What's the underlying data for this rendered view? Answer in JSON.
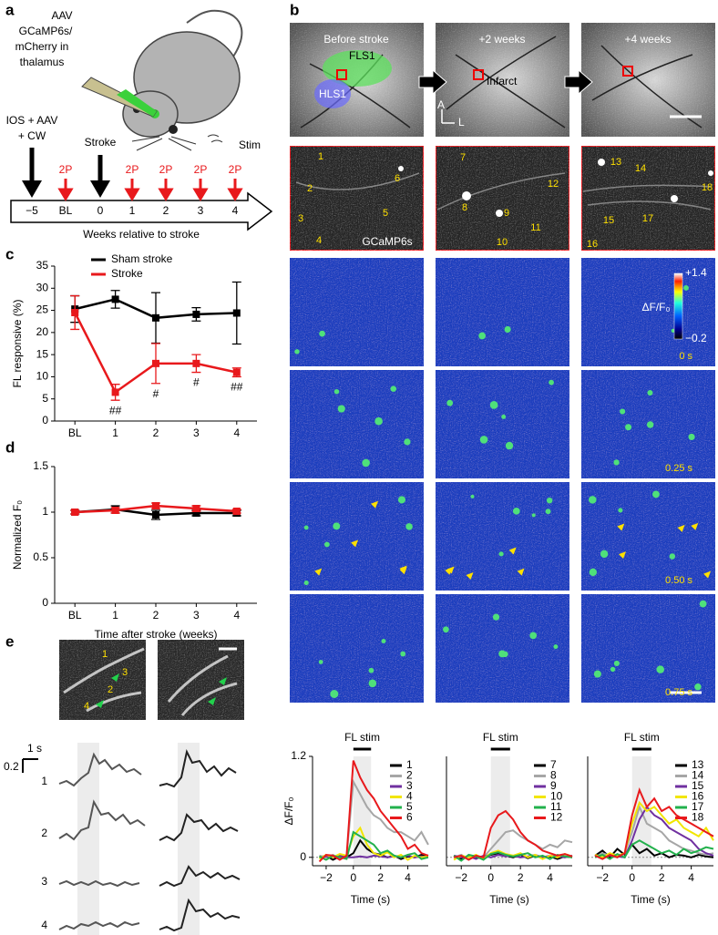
{
  "panel_labels": [
    "a",
    "b",
    "c",
    "d",
    "e"
  ],
  "panel_a": {
    "injection": [
      "AAV",
      "GCaMP6s/",
      "mCherry in",
      "thalamus"
    ],
    "stim": "Stim",
    "surgery": [
      "IOS + AAV",
      "+ CW"
    ],
    "stroke": "Stroke",
    "imaging_labels": [
      "2P",
      "2P",
      "2P",
      "2P",
      "2P"
    ],
    "timeline": [
      "−5",
      "BL",
      "0",
      "1",
      "2",
      "3",
      "4"
    ],
    "timeline_label": "Weeks relative to stroke"
  },
  "panel_b": {
    "columns": [
      "Before stroke",
      "+2 weeks",
      "+4 weeks"
    ],
    "regions": [
      "FLS1",
      "HLS1"
    ],
    "infarct": "Infarct",
    "axes": [
      "A",
      "L"
    ],
    "cells": [
      [
        "1",
        "2",
        "3",
        "4",
        "5",
        "6"
      ],
      [
        "7",
        "8",
        "9",
        "10",
        "11",
        "12"
      ],
      [
        "13",
        "14",
        "15",
        "16",
        "17",
        "18"
      ]
    ],
    "indicator": "GCaMP6s",
    "colorbar": {
      "label": "ΔF/F₀",
      "ticks": [
        {
          "value": 1.4,
          "label": "+1.4"
        },
        {
          "value": -0.2,
          "label": "−0.2"
        }
      ]
    },
    "frames": [
      "0 s",
      "0.25 s",
      "0.50 s",
      "0.75 s"
    ]
  },
  "panel_e": {
    "cells": [
      "1",
      "3",
      "2",
      "4"
    ],
    "row_labels": [
      "1",
      "2",
      "3",
      "4"
    ],
    "scale_time": "1 s",
    "scale_amplitude": "0.2"
  },
  "chart_data": [
    {
      "type": "line",
      "ylabel": "FL responsive (%)",
      "categories": [
        "BL",
        "1",
        "2",
        "3",
        "4"
      ],
      "ylim": [
        0,
        35
      ],
      "yticks": [
        0,
        5,
        10,
        15,
        20,
        25,
        30,
        35
      ],
      "legend": "top",
      "series": [
        {
          "name": "Sham stroke",
          "color": "#000000",
          "values": [
            25.3,
            27.5,
            23.3,
            24.1,
            24.4
          ],
          "errors": [
            3,
            2,
            5.7,
            1.5,
            7
          ]
        },
        {
          "name": "Stroke",
          "color": "#e8191c",
          "values": [
            24.5,
            6.5,
            13,
            13,
            11
          ],
          "errors": [
            3.8,
            1.8,
            4.5,
            2,
            1
          ],
          "significance": [
            null,
            "##",
            "#",
            "#",
            "##"
          ]
        }
      ]
    },
    {
      "type": "line",
      "ylabel": "Normalized F₀",
      "xlabel": "Time after stroke (weeks)",
      "categories": [
        "BL",
        "1",
        "2",
        "3",
        "4"
      ],
      "ylim": [
        0,
        1.5
      ],
      "yticks": [
        0,
        0.5,
        1,
        1.5
      ],
      "series": [
        {
          "name": "Sham stroke",
          "color": "#000000",
          "values": [
            1,
            1.03,
            0.97,
            0.99,
            0.99
          ],
          "errors": [
            0.02,
            0.04,
            0.05,
            0.03,
            0.03
          ]
        },
        {
          "name": "Stroke",
          "color": "#e8191c",
          "values": [
            1,
            1.02,
            1.07,
            1.04,
            1.01
          ],
          "errors": [
            0.02,
            0.03,
            0.03,
            0.03,
            0.02
          ]
        }
      ]
    },
    {
      "type": "line",
      "title": "FL stim",
      "ylabel": "ΔF/F₀",
      "xlabel": "Time (s)",
      "stim": [
        0,
        1.3
      ],
      "x": [
        -2.5,
        -2,
        -1.5,
        -1,
        -0.5,
        0,
        0.5,
        1,
        1.5,
        2,
        2.5,
        3,
        3.5,
        4,
        4.5,
        5,
        5.5
      ],
      "xlim": [
        -3,
        5.5
      ],
      "xticks": [
        {
          "value": -2,
          "label": "−2"
        },
        0,
        2,
        4
      ],
      "ylim": [
        -0.1,
        1.2
      ],
      "yticks": [
        0,
        1.2
      ],
      "legend": "right",
      "series": [
        {
          "name": "1",
          "color": "#000000",
          "values": [
            0,
            0.02,
            -0.03,
            0.01,
            0,
            0.05,
            0.2,
            0.1,
            0.05,
            0.03,
            0,
            0.02,
            -0.02,
            0.01,
            0,
            0.03,
            0.02
          ]
        },
        {
          "name": "2",
          "color": "#a6a6a6",
          "values": [
            0.02,
            0,
            0.03,
            -0.02,
            0.01,
            0.9,
            0.75,
            0.6,
            0.5,
            0.45,
            0.35,
            0.3,
            0.3,
            0.25,
            0.2,
            0.3,
            0.15
          ]
        },
        {
          "name": "3",
          "color": "#7030a0",
          "values": [
            0,
            0.01,
            0,
            0.02,
            0,
            0,
            0.01,
            0,
            0.02,
            0.01,
            0,
            0.01,
            0,
            0.02,
            0,
            0.01,
            0
          ]
        },
        {
          "name": "4",
          "color": "#f2e600",
          "values": [
            -0.02,
            0.03,
            0,
            0.04,
            0.02,
            0.25,
            0.35,
            0.15,
            0.05,
            0.02,
            0.06,
            0,
            0.03,
            -0.03,
            0.02,
            0,
            0.01
          ]
        },
        {
          "name": "5",
          "color": "#22b14c",
          "values": [
            0.01,
            -0.03,
            0.02,
            0,
            -0.02,
            0.3,
            0.25,
            0.2,
            0.15,
            0.05,
            0.08,
            0.02,
            0,
            0.03,
            0.05,
            -0.02,
            0
          ]
        },
        {
          "name": "6",
          "color": "#e8191c",
          "values": [
            -0.05,
            0.03,
            0.02,
            -0.03,
            0.02,
            1.15,
            0.95,
            0.8,
            0.7,
            0.55,
            0.45,
            0.35,
            0.25,
            0.1,
            0.15,
            0.05,
            0.02
          ]
        }
      ]
    },
    {
      "type": "line",
      "title": "FL stim",
      "xlabel": "Time (s)",
      "stim": [
        0,
        1.3
      ],
      "x": [
        -2.5,
        -2,
        -1.5,
        -1,
        -0.5,
        0,
        0.5,
        1,
        1.5,
        2,
        2.5,
        3,
        3.5,
        4,
        4.5,
        5,
        5.5
      ],
      "xlim": [
        -3,
        5.5
      ],
      "xticks": [
        {
          "value": -2,
          "label": "−2"
        },
        0,
        2,
        4
      ],
      "ylim": [
        -0.1,
        1.2
      ],
      "legend": "right",
      "series": [
        {
          "name": "7",
          "color": "#000000",
          "values": [
            0.01,
            -0.02,
            0.02,
            0,
            0.01,
            0.03,
            0.05,
            0.02,
            0,
            0.03,
            -0.01,
            0.02,
            0,
            0.01,
            -0.02,
            0.01,
            0
          ]
        },
        {
          "name": "8",
          "color": "#a6a6a6",
          "values": [
            0,
            0.03,
            -0.02,
            0.01,
            0,
            0.1,
            0.2,
            0.3,
            0.32,
            0.25,
            0.2,
            0.15,
            0.1,
            0.15,
            0.12,
            0.2,
            0.18
          ]
        },
        {
          "name": "9",
          "color": "#7030a0",
          "values": [
            0.02,
            0,
            0.01,
            -0.02,
            0.02,
            0,
            0.03,
            0.01,
            0.02,
            0,
            0.01,
            0.03,
            0,
            0.02,
            0.01,
            0,
            0.02
          ]
        },
        {
          "name": "10",
          "color": "#f2e600",
          "values": [
            -0.03,
            0.02,
            0,
            0.03,
            -0.02,
            0.05,
            0.08,
            0.04,
            0.02,
            0.05,
            0,
            0.03,
            -0.02,
            0.02,
            0,
            0.04,
            0.01
          ]
        },
        {
          "name": "11",
          "color": "#22b14c",
          "values": [
            0.02,
            -0.04,
            0.03,
            0.01,
            -0.03,
            0.04,
            0.06,
            0.03,
            0.01,
            0.03,
            0.05,
            0,
            0.02,
            -0.02,
            0.03,
            0.01,
            0
          ]
        },
        {
          "name": "12",
          "color": "#e8191c",
          "values": [
            0,
            0.02,
            -0.03,
            0.02,
            0,
            0.35,
            0.5,
            0.55,
            0.45,
            0.3,
            0.2,
            0.15,
            0.08,
            0.05,
            0.02,
            0.04,
            0.01
          ]
        }
      ]
    },
    {
      "type": "line",
      "title": "FL stim",
      "xlabel": "Time (s)",
      "stim": [
        0,
        1.3
      ],
      "x": [
        -2.5,
        -2,
        -1.5,
        -1,
        -0.5,
        0,
        0.5,
        1,
        1.5,
        2,
        2.5,
        3,
        3.5,
        4,
        4.5,
        5,
        5.5
      ],
      "xlim": [
        -3,
        5.5
      ],
      "xticks": [
        {
          "value": -2,
          "label": "−2"
        },
        0,
        2,
        4
      ],
      "ylim": [
        -0.1,
        1.2
      ],
      "legend": "right",
      "series": [
        {
          "name": "13",
          "color": "#000000",
          "values": [
            0.02,
            0.08,
            0,
            0.1,
            0.03,
            0.15,
            0.05,
            0.1,
            0.02,
            0.05,
            0,
            0.03,
            0.02,
            0,
            0.03,
            0.01,
            0
          ]
        },
        {
          "name": "14",
          "color": "#a6a6a6",
          "values": [
            0,
            0.05,
            0.02,
            0,
            0.05,
            0.3,
            0.6,
            0.4,
            0.35,
            0.3,
            0.2,
            0.15,
            0.1,
            0.08,
            0.05,
            0.03,
            0.05
          ]
        },
        {
          "name": "15",
          "color": "#7030a0",
          "values": [
            0.01,
            0,
            0.02,
            0.01,
            0,
            0.2,
            0.45,
            0.6,
            0.5,
            0.45,
            0.35,
            0.3,
            0.25,
            0.2,
            0.1,
            0.05,
            0.02
          ]
        },
        {
          "name": "16",
          "color": "#f2e600",
          "values": [
            0.03,
            0,
            0.05,
            0.02,
            0.05,
            0.4,
            0.65,
            0.55,
            0.6,
            0.5,
            0.4,
            0.45,
            0.35,
            0.3,
            0.25,
            0.35,
            0.2
          ]
        },
        {
          "name": "17",
          "color": "#22b14c",
          "values": [
            0,
            0.03,
            -0.02,
            0.04,
            0,
            0.15,
            0.2,
            0.15,
            0.1,
            0.05,
            0.08,
            0.03,
            0.1,
            0.05,
            0.08,
            0.12,
            0.1
          ]
        },
        {
          "name": "18",
          "color": "#e8191c",
          "values": [
            0.02,
            -0.02,
            0.03,
            0,
            0.05,
            0.5,
            0.8,
            0.6,
            0.7,
            0.55,
            0.6,
            0.5,
            0.45,
            0.4,
            0.35,
            0.3,
            0.25
          ]
        }
      ]
    }
  ]
}
